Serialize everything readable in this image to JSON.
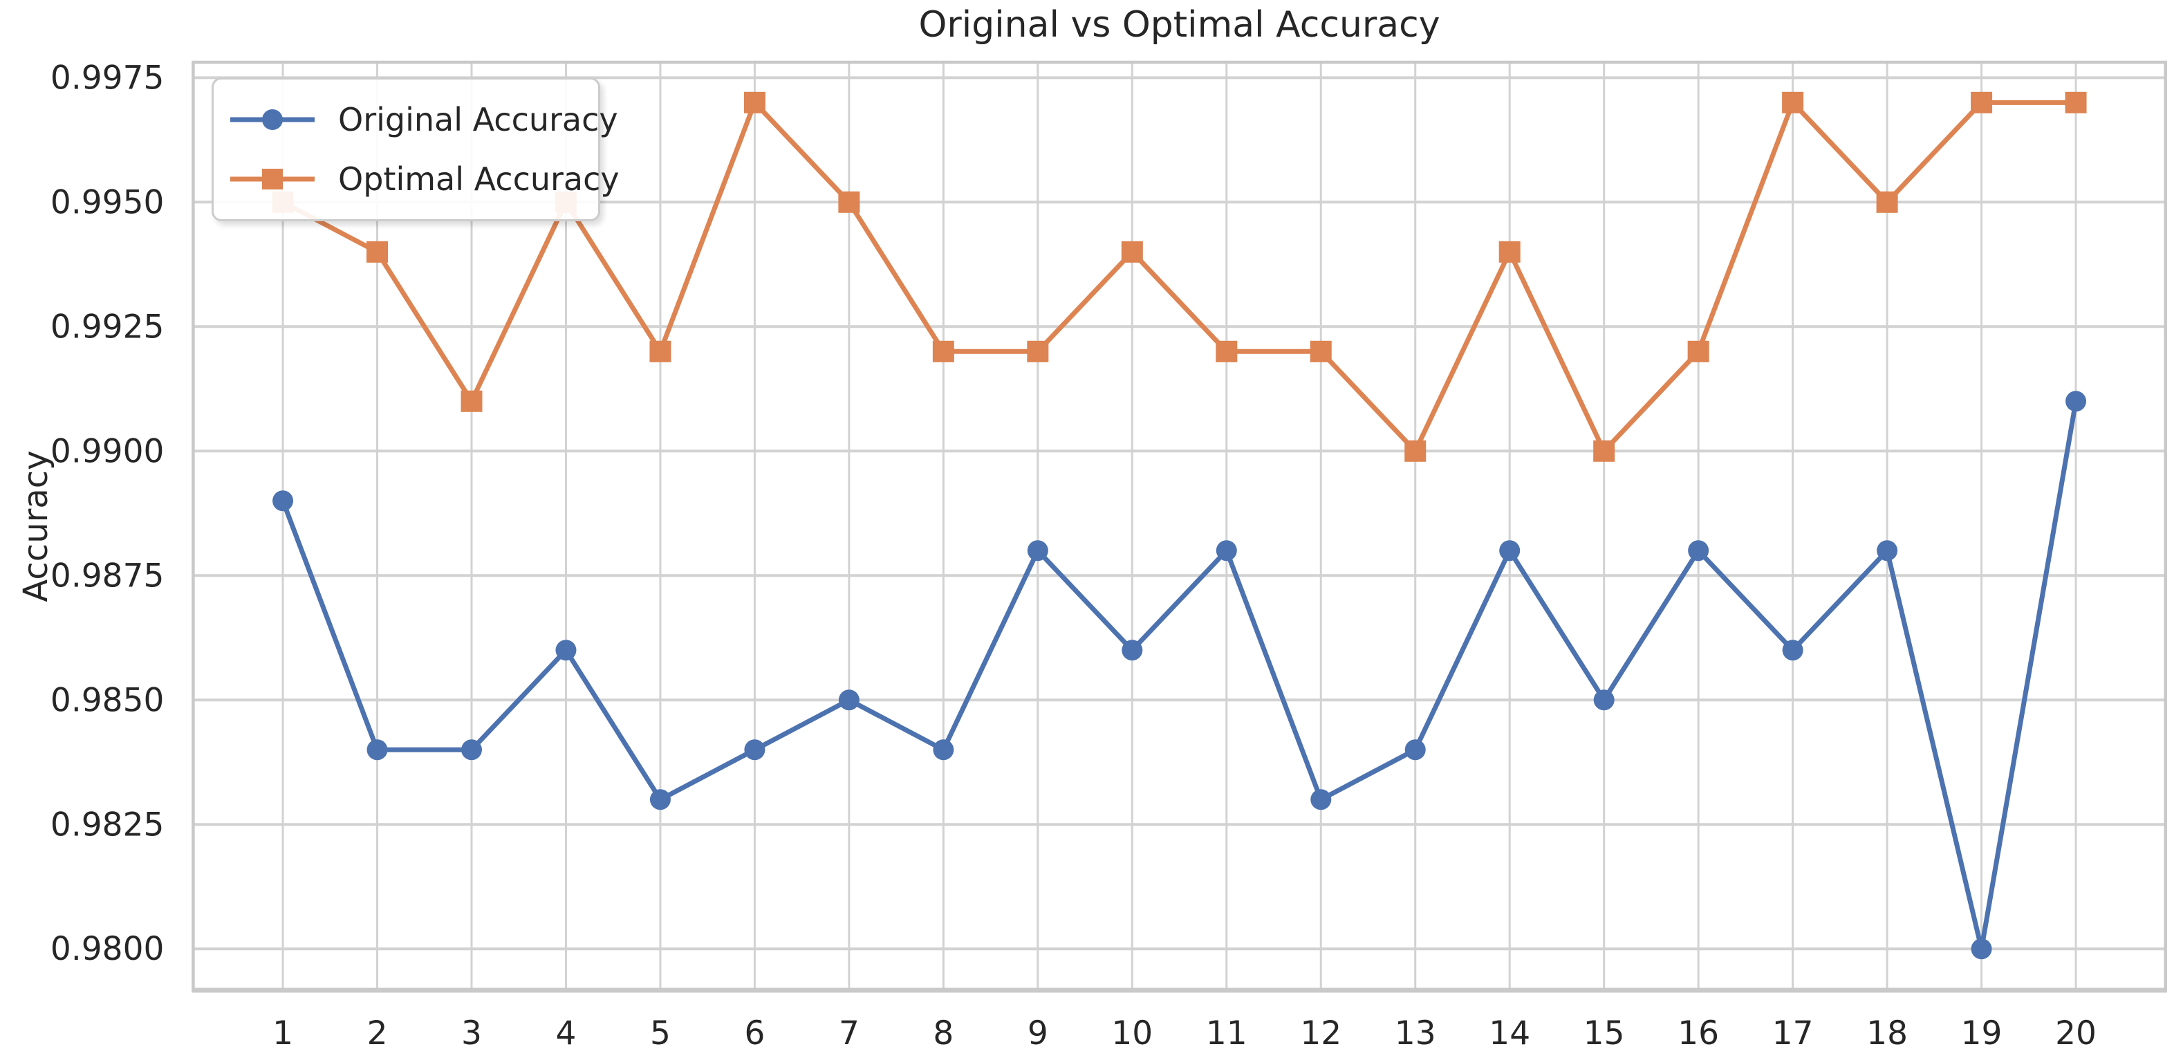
{
  "title": "Original vs Optimal Accuracy",
  "ylabel": "Accuracy",
  "legend": {
    "position": "upper left",
    "items": [
      {
        "label": "Original Accuracy",
        "marker": "circle-marker-icon",
        "color": "#4C72B0"
      },
      {
        "label": "Optimal Accuracy",
        "marker": "square-marker-icon",
        "color": "#DD8452"
      }
    ]
  },
  "chart_data": {
    "type": "line",
    "title": "Original vs Optimal Accuracy",
    "xlabel": "",
    "ylabel": "Accuracy",
    "x": [
      1,
      2,
      3,
      4,
      5,
      6,
      7,
      8,
      9,
      10,
      11,
      12,
      13,
      14,
      15,
      16,
      17,
      18,
      19,
      20
    ],
    "series": [
      {
        "name": "Original Accuracy",
        "color": "#4C72B0",
        "marker": "circle",
        "values": [
          0.989,
          0.984,
          0.984,
          0.986,
          0.983,
          0.984,
          0.985,
          0.984,
          0.988,
          0.986,
          0.988,
          0.983,
          0.984,
          0.988,
          0.985,
          0.988,
          0.986,
          0.988,
          0.98,
          0.991
        ]
      },
      {
        "name": "Optimal Accuracy",
        "color": "#DD8452",
        "marker": "square",
        "values": [
          0.995,
          0.994,
          0.991,
          0.995,
          0.992,
          0.997,
          0.995,
          0.992,
          0.992,
          0.994,
          0.992,
          0.992,
          0.99,
          0.994,
          0.99,
          0.992,
          0.997,
          0.995,
          0.997,
          0.997
        ]
      }
    ],
    "xticks": [
      1,
      2,
      3,
      4,
      5,
      6,
      7,
      8,
      9,
      10,
      11,
      12,
      13,
      14,
      15,
      16,
      17,
      18,
      19,
      20
    ],
    "xtick_labels": [
      "1",
      "2",
      "3",
      "4",
      "5",
      "6",
      "7",
      "8",
      "9",
      "10",
      "11",
      "12",
      "13",
      "14",
      "15",
      "16",
      "17",
      "18",
      "19",
      "20"
    ],
    "yticks": [
      0.98,
      0.9825,
      0.985,
      0.9875,
      0.99,
      0.9925,
      0.995,
      0.9975
    ],
    "ytick_labels": [
      "0.9800",
      "0.9825",
      "0.9850",
      "0.9875",
      "0.9900",
      "0.9925",
      "0.9950",
      "0.9975"
    ],
    "xlim": [
      0.05,
      20.95
    ],
    "ylim": [
      0.97917,
      0.99781
    ],
    "grid": true,
    "legend_position": "upper left",
    "colors": {
      "background": "#ffffff",
      "grid": "#d2d2d2",
      "spine": "#c9c9c9",
      "text": "#262626"
    }
  }
}
